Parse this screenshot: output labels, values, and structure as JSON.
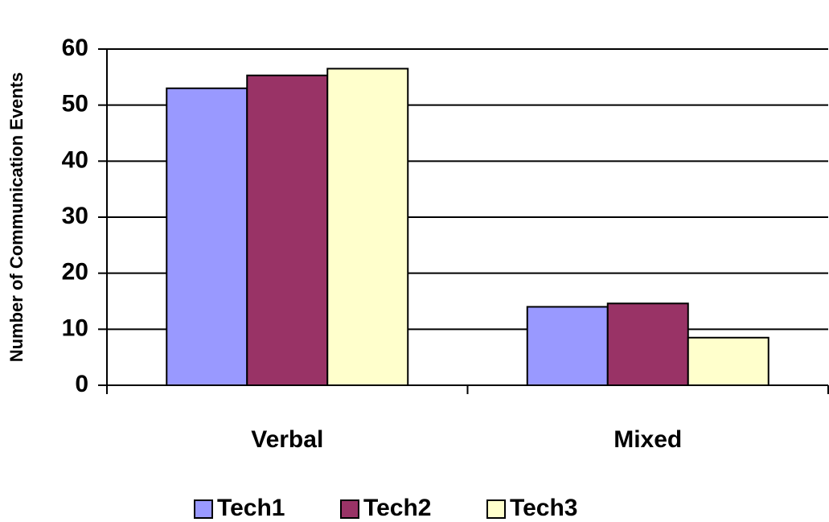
{
  "chart_data": {
    "type": "bar",
    "y_label": "Number of Communication Events",
    "categories": [
      "Verbal",
      "Mixed"
    ],
    "series": [
      {
        "name": "Tech1",
        "color": "#9999ff",
        "values": [
          53,
          14
        ]
      },
      {
        "name": "Tech2",
        "color": "#993366",
        "values": [
          55.3,
          14.6
        ]
      },
      {
        "name": "Tech3",
        "color": "#ffffcc",
        "values": [
          56.5,
          8.5
        ]
      }
    ],
    "ylim": [
      0,
      60
    ],
    "yticks": [
      0,
      10,
      20,
      30,
      40,
      50,
      60
    ],
    "grid": true,
    "legend": "bottom"
  }
}
